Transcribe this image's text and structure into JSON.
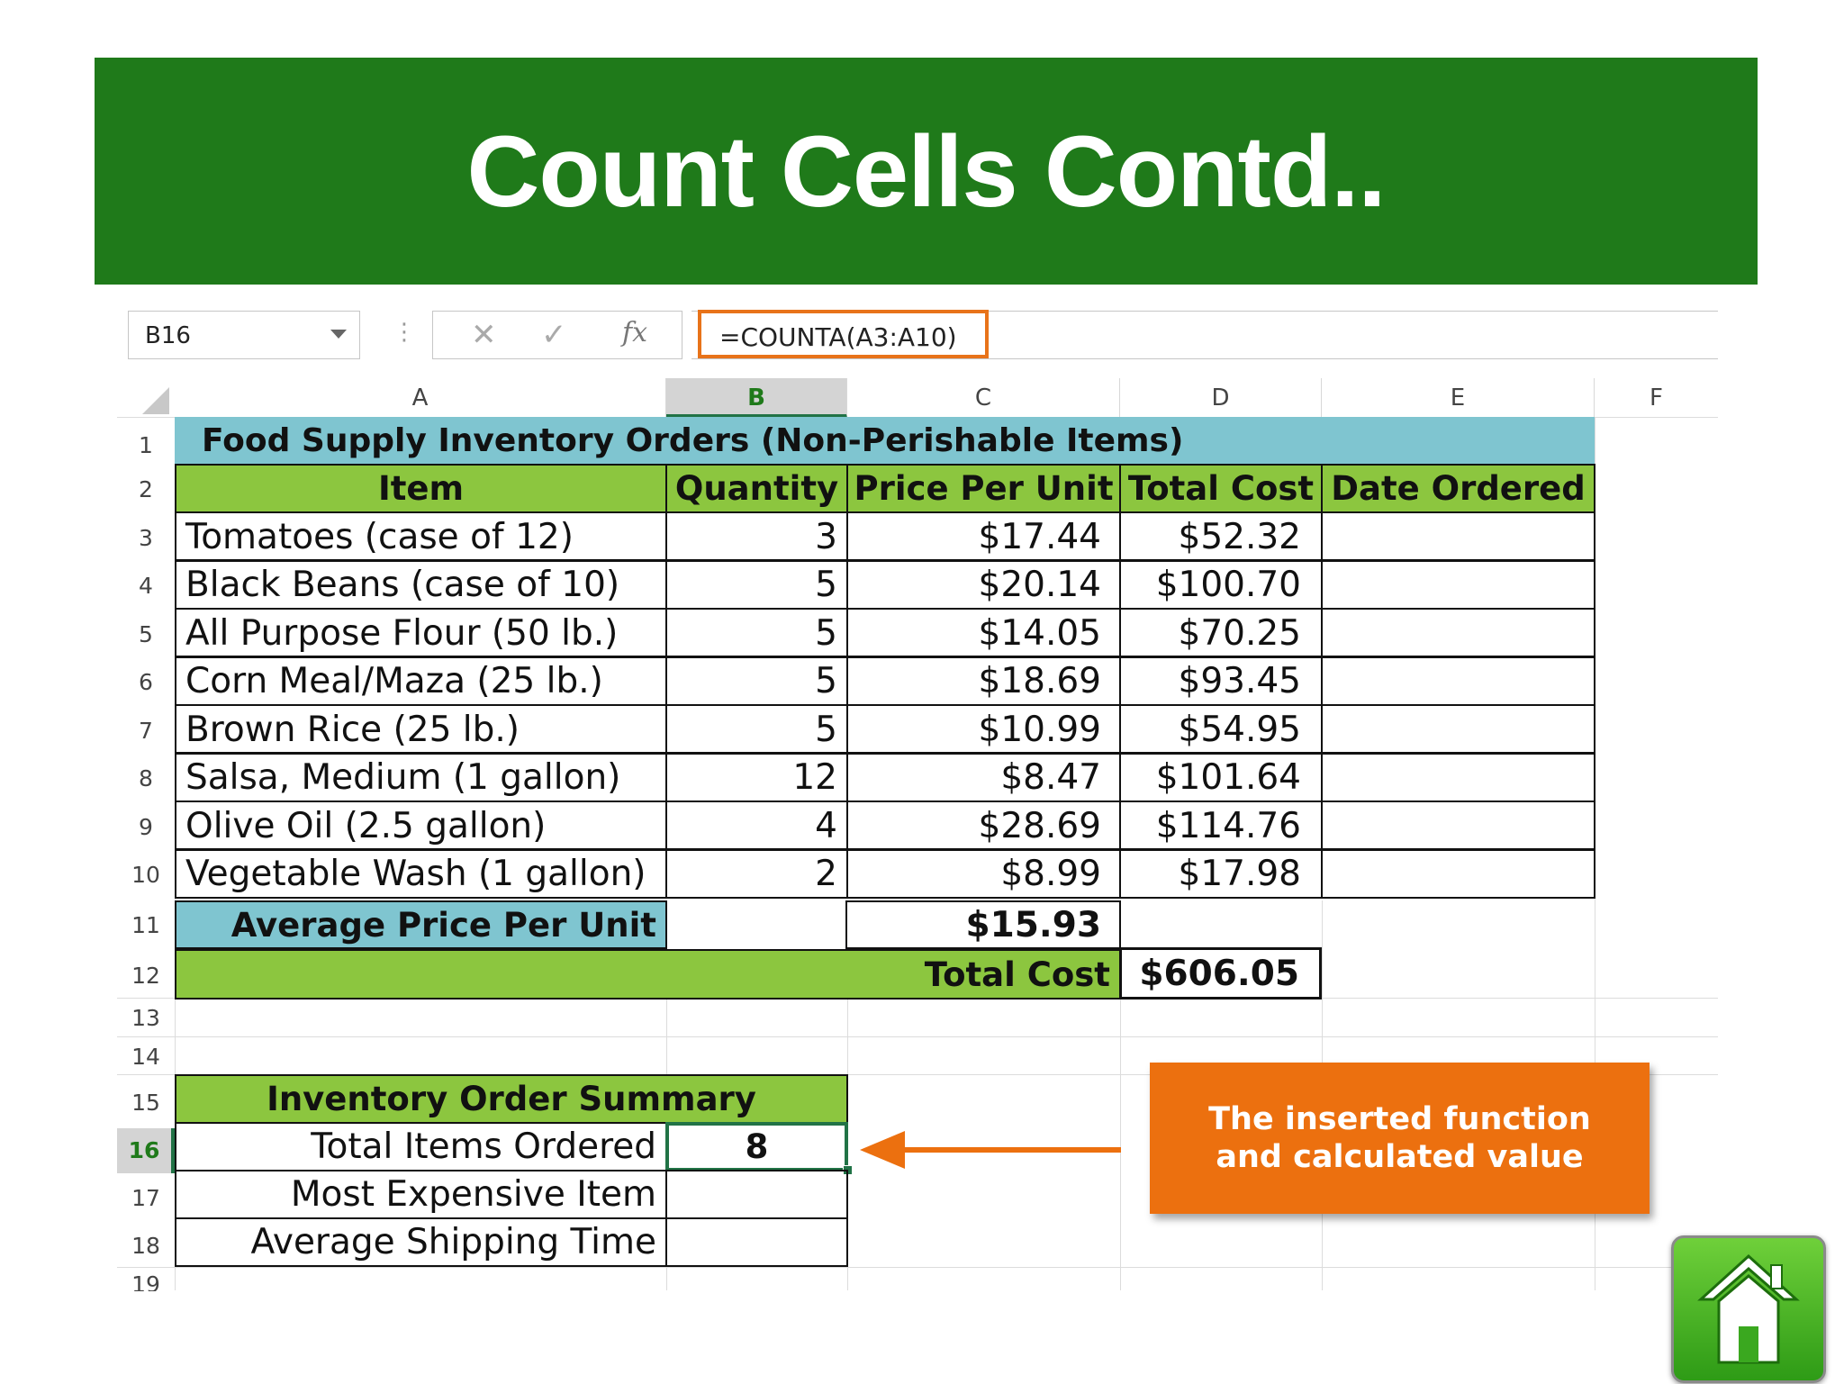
{
  "slide": {
    "title": "Count Cells Contd.."
  },
  "formula_bar": {
    "name_box": "B16",
    "cancel_icon": "close-icon",
    "enter_icon": "check-icon",
    "function_icon": "fx-icon",
    "formula": "=COUNTA(A3:A10)"
  },
  "columns": [
    "A",
    "B",
    "C",
    "D",
    "E",
    "F"
  ],
  "selected_column": "B",
  "rows": [
    "1",
    "2",
    "3",
    "4",
    "5",
    "6",
    "7",
    "8",
    "9",
    "10",
    "11",
    "12",
    "13",
    "14",
    "15",
    "16",
    "17",
    "18",
    "19"
  ],
  "selected_row": "16",
  "sheet": {
    "title": "Food Supply Inventory Orders (Non-Perishable Items)",
    "headers": [
      "Item",
      "Quantity",
      "Price Per Unit",
      "Total Cost",
      "Date Ordered"
    ],
    "items": [
      {
        "item": "Tomatoes (case of 12)",
        "qty": "3",
        "price": "$17.44",
        "total": "$52.32"
      },
      {
        "item": "Black Beans (case of 10)",
        "qty": "5",
        "price": "$20.14",
        "total": "$100.70"
      },
      {
        "item": "All Purpose Flour (50 lb.)",
        "qty": "5",
        "price": "$14.05",
        "total": "$70.25"
      },
      {
        "item": "Corn Meal/Maza (25 lb.)",
        "qty": "5",
        "price": "$18.69",
        "total": "$93.45"
      },
      {
        "item": "Brown Rice (25 lb.)",
        "qty": "5",
        "price": "$10.99",
        "total": "$54.95"
      },
      {
        "item": "Salsa, Medium (1 gallon)",
        "qty": "12",
        "price": "$8.47",
        "total": "$101.64"
      },
      {
        "item": "Olive Oil (2.5 gallon)",
        "qty": "4",
        "price": "$28.69",
        "total": "$114.76"
      },
      {
        "item": "Vegetable Wash (1 gallon)",
        "qty": "2",
        "price": "$8.99",
        "total": "$17.98"
      }
    ],
    "avg_label": "Average Price Per Unit",
    "avg_value": "$15.93",
    "total_label": "Total Cost",
    "total_value": "$606.05",
    "summary_title": "Inventory Order Summary",
    "summary": [
      {
        "label": "Total Items Ordered",
        "value": "8"
      },
      {
        "label": "Most Expensive Item",
        "value": ""
      },
      {
        "label": "Average Shipping Time",
        "value": ""
      }
    ]
  },
  "callout": {
    "line1": "The inserted function",
    "line2": "and calculated value"
  },
  "colors": {
    "banner": "#1f7a1a",
    "title_fill": "#7fc5d0",
    "header_fill": "#8cc63f",
    "callout": "#ec700f"
  },
  "home_button": {
    "icon": "home-icon"
  }
}
